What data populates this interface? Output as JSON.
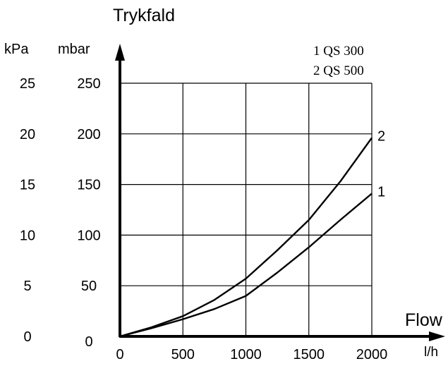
{
  "chart_data": {
    "type": "line",
    "title": "Trykfald",
    "xlabel": "Flow",
    "x_unit": "l/h",
    "y_unit_left": "kPa",
    "y_unit_right": "mbar",
    "x_ticks": [
      "0",
      "500",
      "1000",
      "1500",
      "2000"
    ],
    "kpa_ticks": [
      "0",
      "5",
      "10",
      "15",
      "20",
      "25"
    ],
    "mbar_ticks": [
      "0",
      "50",
      "100",
      "150",
      "200",
      "250"
    ],
    "xlim": [
      0,
      2000
    ],
    "ylim": [
      0,
      250
    ],
    "grid": true,
    "legend": [
      "1 QS 300",
      "2 QS 500"
    ],
    "series": [
      {
        "name": "1",
        "x": [
          0,
          250,
          500,
          750,
          1000,
          1250,
          1500,
          1750,
          2000
        ],
        "values": [
          0,
          8,
          17,
          27,
          40,
          63,
          88,
          115,
          141
        ]
      },
      {
        "name": "2",
        "x": [
          0,
          250,
          500,
          750,
          1000,
          1250,
          1500,
          1750,
          2000
        ],
        "values": [
          0,
          9,
          20,
          36,
          57,
          85,
          115,
          153,
          196
        ]
      }
    ]
  }
}
